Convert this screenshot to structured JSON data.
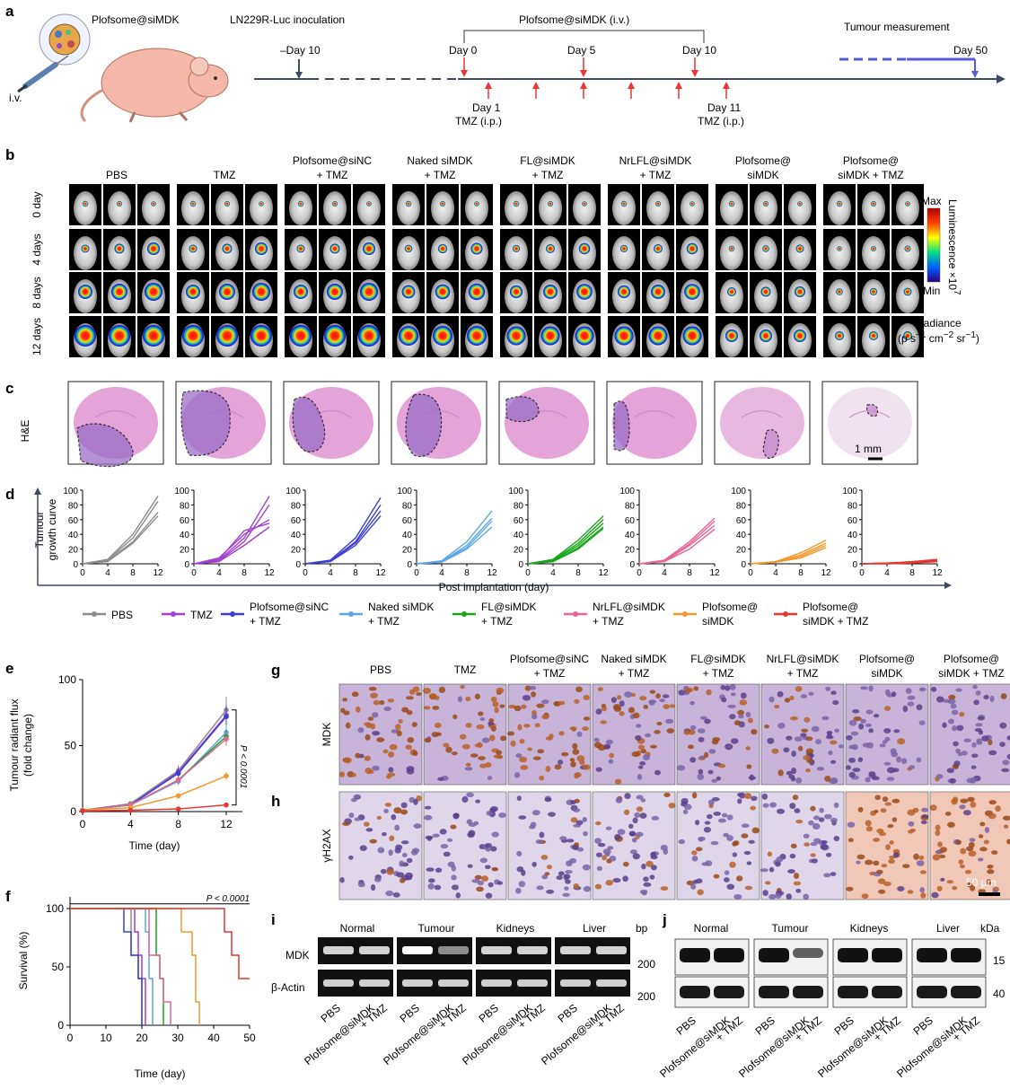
{
  "panel_labels": {
    "a": "a",
    "b": "b",
    "c": "c",
    "d": "d",
    "e": "e",
    "f": "f",
    "g": "g",
    "h": "h",
    "i": "i",
    "j": "j"
  },
  "panel_a": {
    "formulation": "Plofsome@siMDK",
    "route": "i.v.",
    "inoculation": "LN229R-Luc inoculation",
    "treatment": "Plofsome@siMDK (i.v.)",
    "measurement": "Tumour measurement",
    "days": {
      "dm10": "–Day 10",
      "d0": "Day 0",
      "d5": "Day 5",
      "d10": "Day 10",
      "d50": "Day 50",
      "d1": "Day 1",
      "d11": "Day 11"
    },
    "tmz": "TMZ (i.p.)"
  },
  "groups": [
    {
      "l1": "PBS",
      "l2": "",
      "color": "#8c8c8c"
    },
    {
      "l1": "TMZ",
      "l2": "",
      "color": "#a23fd1"
    },
    {
      "l1": "Plofsome@siNC",
      "l2": "+ TMZ",
      "color": "#3b3fd6"
    },
    {
      "l1": "Naked siMDK",
      "l2": "+ TMZ",
      "color": "#5aa6e6"
    },
    {
      "l1": "FL@siMDK",
      "l2": "+ TMZ",
      "color": "#1aa51a"
    },
    {
      "l1": "NrLFL@siMDK",
      "l2": "+ TMZ",
      "color": "#e8659a"
    },
    {
      "l1": "Plofsome@",
      "l2": "siMDK",
      "color": "#f39a2e"
    },
    {
      "l1": "Plofsome@",
      "l2": "siMDK + TMZ",
      "color": "#e8352e"
    }
  ],
  "panel_b": {
    "rows": [
      "0 day",
      "4 days",
      "8 days",
      "12 days"
    ],
    "colorbar": {
      "max": "Max",
      "min": "Min",
      "title": "Luminescence ×10",
      "exp": "7",
      "radiance": "Radiance",
      "unit_prefix": "(p s",
      "unit_mid": " cm",
      "unit_end": " sr",
      "sup1": "−1",
      "sup2": "−2",
      "close": ")"
    },
    "tumour_scale": [
      [
        0.12,
        0.1,
        0.08
      ],
      [
        0.25,
        0.35,
        0.5
      ],
      [
        0.6,
        0.7,
        0.8
      ],
      [
        1.0,
        1.0,
        1.0
      ]
    ]
  },
  "panel_c": {
    "ylabel": "H&E",
    "scale": "1 mm"
  },
  "panel_d": {
    "ylabel1": "Tumour",
    "ylabel2": "growth curve",
    "xlabel": "Post implantation (day)",
    "xticks": [
      "0",
      "4",
      "8",
      "12"
    ],
    "yticks": [
      "0",
      "20",
      "40",
      "60",
      "80",
      "100"
    ],
    "chart_data": {
      "type": "line",
      "x": [
        0,
        4,
        8,
        12
      ],
      "ylim": [
        0,
        100
      ],
      "series": [
        {
          "name": "PBS",
          "curves": [
            [
              0,
              6,
              40,
              92
            ],
            [
              0,
              5,
              35,
              85
            ],
            [
              0,
              4,
              30,
              70
            ],
            [
              0,
              3,
              28,
              65
            ]
          ]
        },
        {
          "name": "TMZ",
          "curves": [
            [
              0,
              5,
              35,
              92
            ],
            [
              0,
              4,
              30,
              80
            ],
            [
              0,
              8,
              40,
              60
            ],
            [
              0,
              6,
              45,
              55
            ],
            [
              0,
              3,
              25,
              50
            ]
          ]
        },
        {
          "name": "Plofsome@siNC + TMZ",
          "curves": [
            [
              0,
              5,
              35,
              90
            ],
            [
              0,
              4,
              30,
              80
            ],
            [
              0,
              4,
              28,
              72
            ],
            [
              0,
              3,
              25,
              65
            ]
          ]
        },
        {
          "name": "Naked siMDK + TMZ",
          "curves": [
            [
              0,
              4,
              30,
              72
            ],
            [
              0,
              3,
              25,
              62
            ],
            [
              0,
              3,
              22,
              58
            ],
            [
              0,
              2,
              20,
              50
            ]
          ]
        },
        {
          "name": "FL@siMDK + TMZ",
          "curves": [
            [
              0,
              6,
              32,
              65
            ],
            [
              0,
              5,
              28,
              60
            ],
            [
              0,
              4,
              25,
              55
            ],
            [
              0,
              3,
              22,
              50
            ],
            [
              0,
              3,
              20,
              48
            ]
          ]
        },
        {
          "name": "NrLFL@siMDK + TMZ",
          "curves": [
            [
              0,
              5,
              30,
              62
            ],
            [
              0,
              4,
              27,
              58
            ],
            [
              0,
              3,
              25,
              52
            ],
            [
              0,
              3,
              20,
              47
            ]
          ]
        },
        {
          "name": "Plofsome@siMDK",
          "curves": [
            [
              0,
              3,
              15,
              32
            ],
            [
              0,
              3,
              12,
              28
            ],
            [
              0,
              2,
              10,
              25
            ],
            [
              0,
              2,
              8,
              22
            ]
          ]
        },
        {
          "name": "Plofsome@siMDK + TMZ",
          "curves": [
            [
              0,
              1,
              3,
              6
            ],
            [
              0,
              1,
              2,
              5
            ],
            [
              0,
              1,
              2,
              4
            ],
            [
              0,
              0,
              1,
              3
            ]
          ]
        }
      ]
    }
  },
  "panel_e": {
    "ylabel1": "Tumour radiant flux",
    "ylabel2": "(fold change)",
    "xlabel": "Time (day)",
    "xticks": [
      "0",
      "4",
      "8",
      "12"
    ],
    "yticks": [
      "0",
      "50",
      "100"
    ],
    "pval": "P < 0.0001",
    "chart_data": {
      "type": "line",
      "x": [
        0,
        4,
        8,
        12
      ],
      "ylim": [
        0,
        100
      ],
      "series": [
        {
          "name": "PBS",
          "values": [
            1,
            6,
            31,
            77
          ],
          "err": [
            0.5,
            1,
            4,
            10
          ]
        },
        {
          "name": "TMZ",
          "values": [
            1,
            5,
            30,
            73
          ],
          "err": [
            0.5,
            1,
            4,
            8
          ]
        },
        {
          "name": "Plofsome@siNC + TMZ",
          "values": [
            1,
            5,
            29,
            72
          ],
          "err": [
            0.5,
            1,
            4,
            8
          ]
        },
        {
          "name": "Naked siMDK + TMZ",
          "values": [
            1,
            5,
            23,
            60
          ],
          "err": [
            0.5,
            1,
            3,
            6
          ]
        },
        {
          "name": "FL@siMDK + TMZ",
          "values": [
            1,
            5,
            24,
            57
          ],
          "err": [
            0.5,
            1,
            3,
            5
          ]
        },
        {
          "name": "NrLFL@siMDK + TMZ",
          "values": [
            1,
            5,
            24,
            55
          ],
          "err": [
            0.5,
            1,
            3,
            5
          ]
        },
        {
          "name": "Plofsome@siMDK",
          "values": [
            1,
            3,
            12,
            27
          ],
          "err": [
            0.3,
            0.5,
            2,
            3
          ]
        },
        {
          "name": "Plofsome@siMDK + TMZ",
          "values": [
            0.5,
            1,
            2,
            5
          ],
          "err": [
            0.2,
            0.2,
            0.3,
            0.5
          ]
        }
      ]
    }
  },
  "panel_f": {
    "ylabel": "Survival (%)",
    "xlabel": "Time (day)",
    "xticks": [
      "0",
      "10",
      "20",
      "30",
      "40",
      "50"
    ],
    "yticks": [
      "0",
      "50",
      "100"
    ],
    "pval": "P < 0.0001",
    "chart_data": {
      "type": "line",
      "xlim": [
        0,
        50
      ],
      "ylim": [
        0,
        100
      ],
      "series": [
        {
          "name": "PBS",
          "steps": [
            [
              0,
              100
            ],
            [
              17,
              100
            ],
            [
              17,
              60
            ],
            [
              19,
              60
            ],
            [
              19,
              40
            ],
            [
              20,
              40
            ],
            [
              20,
              0
            ]
          ]
        },
        {
          "name": "TMZ",
          "steps": [
            [
              0,
              100
            ],
            [
              18,
              100
            ],
            [
              18,
              80
            ],
            [
              19,
              80
            ],
            [
              19,
              60
            ],
            [
              20,
              60
            ],
            [
              20,
              40
            ],
            [
              21,
              40
            ],
            [
              21,
              0
            ]
          ]
        },
        {
          "name": "Plofsome@siNC + TMZ",
          "steps": [
            [
              0,
              100
            ],
            [
              15,
              100
            ],
            [
              15,
              80
            ],
            [
              17,
              80
            ],
            [
              17,
              60
            ],
            [
              19,
              60
            ],
            [
              19,
              40
            ],
            [
              20,
              40
            ],
            [
              20,
              0
            ]
          ]
        },
        {
          "name": "Naked siMDK + TMZ",
          "steps": [
            [
              0,
              100
            ],
            [
              21,
              100
            ],
            [
              21,
              80
            ],
            [
              22,
              80
            ],
            [
              22,
              40
            ],
            [
              23,
              40
            ],
            [
              23,
              0
            ]
          ]
        },
        {
          "name": "FL@siMDK + TMZ",
          "steps": [
            [
              0,
              100
            ],
            [
              24,
              100
            ],
            [
              24,
              60
            ],
            [
              25,
              60
            ],
            [
              25,
              40
            ],
            [
              26,
              40
            ],
            [
              26,
              0
            ]
          ]
        },
        {
          "name": "NrLFL@siMDK + TMZ",
          "steps": [
            [
              0,
              100
            ],
            [
              22,
              100
            ],
            [
              22,
              60
            ],
            [
              25,
              60
            ],
            [
              25,
              40
            ],
            [
              26,
              40
            ],
            [
              26,
              20
            ],
            [
              28,
              20
            ],
            [
              28,
              0
            ]
          ]
        },
        {
          "name": "Plofsome@siMDK",
          "steps": [
            [
              0,
              100
            ],
            [
              31,
              100
            ],
            [
              31,
              80
            ],
            [
              34,
              80
            ],
            [
              34,
              60
            ],
            [
              35,
              60
            ],
            [
              35,
              20
            ],
            [
              36,
              20
            ],
            [
              36,
              0
            ]
          ]
        },
        {
          "name": "Plofsome@siMDK + TMZ",
          "steps": [
            [
              0,
              100
            ],
            [
              43,
              100
            ],
            [
              43,
              80
            ],
            [
              45,
              80
            ],
            [
              45,
              60
            ],
            [
              47,
              60
            ],
            [
              47,
              40
            ],
            [
              50,
              40
            ]
          ]
        }
      ]
    }
  },
  "panel_gh": {
    "g_row": "MDK",
    "h_row": "γH2AX",
    "scale": "50 μm",
    "mdk_stain": [
      0.85,
      0.8,
      0.75,
      0.55,
      0.45,
      0.35,
      0.1,
      0.1
    ],
    "h2ax_stain": [
      0.15,
      0.08,
      0.12,
      0.25,
      0.3,
      0.25,
      0.75,
      0.9
    ]
  },
  "panel_i": {
    "tissues": [
      "Normal",
      "Tumour",
      "Kidneys",
      "Liver"
    ],
    "unit": "bp",
    "rows": [
      "MDK",
      "β-Actin"
    ],
    "marker1": "200",
    "marker2": "200",
    "lanes": [
      "PBS",
      "Plofsome@siMDK",
      "+ TMZ"
    ],
    "mdk_intensity": [
      [
        0.75,
        0.75
      ],
      [
        1.0,
        0.35
      ],
      [
        0.75,
        0.75
      ],
      [
        0.75,
        0.75
      ]
    ]
  },
  "panel_j": {
    "tissues": [
      "Normal",
      "Tumour",
      "Kidneys",
      "Liver"
    ],
    "unit": "kDa",
    "marker1": "15",
    "marker2": "40",
    "lanes": [
      "PBS",
      "Plofsome@siMDK",
      "+ TMZ"
    ],
    "top_intensity": [
      [
        1,
        1
      ],
      [
        1,
        0.65
      ],
      [
        1,
        1
      ],
      [
        1,
        1
      ]
    ]
  }
}
